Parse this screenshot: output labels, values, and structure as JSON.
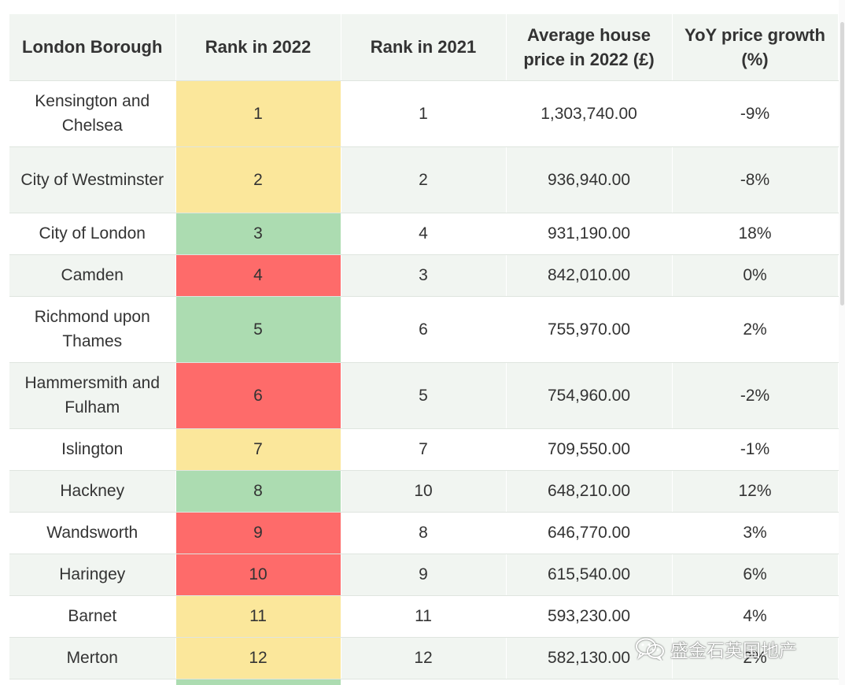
{
  "table": {
    "headers": [
      "London Borough",
      "Rank in 2022",
      "Rank in 2021",
      "Average house price in 2022 (£)",
      "YoY price growth (%)"
    ],
    "rows": [
      {
        "borough": "Kensington and Chelsea",
        "rank_2022": "1",
        "rank_2021": "1",
        "avg_price": "1,303,740.00",
        "yoy": "-9%",
        "rank_color": "#fbe79b"
      },
      {
        "borough": "City of Westminster",
        "rank_2022": "2",
        "rank_2021": "2",
        "avg_price": "936,940.00",
        "yoy": "-8%",
        "rank_color": "#fbe79b"
      },
      {
        "borough": "City of London",
        "rank_2022": "3",
        "rank_2021": "4",
        "avg_price": "931,190.00",
        "yoy": "18%",
        "rank_color": "#acdcb1"
      },
      {
        "borough": "Camden",
        "rank_2022": "4",
        "rank_2021": "3",
        "avg_price": "842,010.00",
        "yoy": "0%",
        "rank_color": "#fe6b6a"
      },
      {
        "borough": "Richmond upon Thames",
        "rank_2022": "5",
        "rank_2021": "6",
        "avg_price": "755,970.00",
        "yoy": "2%",
        "rank_color": "#acdcb1"
      },
      {
        "borough": "Hammersmith and Fulham",
        "rank_2022": "6",
        "rank_2021": "5",
        "avg_price": "754,960.00",
        "yoy": "-2%",
        "rank_color": "#fe6b6a"
      },
      {
        "borough": "Islington",
        "rank_2022": "7",
        "rank_2021": "7",
        "avg_price": "709,550.00",
        "yoy": "-1%",
        "rank_color": "#fbe79b"
      },
      {
        "borough": "Hackney",
        "rank_2022": "8",
        "rank_2021": "10",
        "avg_price": "648,210.00",
        "yoy": "12%",
        "rank_color": "#acdcb1"
      },
      {
        "borough": "Wandsworth",
        "rank_2022": "9",
        "rank_2021": "8",
        "avg_price": "646,770.00",
        "yoy": "3%",
        "rank_color": "#fe6b6a"
      },
      {
        "borough": "Haringey",
        "rank_2022": "10",
        "rank_2021": "9",
        "avg_price": "615,540.00",
        "yoy": "6%",
        "rank_color": "#fe6b6a"
      },
      {
        "borough": "Barnet",
        "rank_2022": "11",
        "rank_2021": "11",
        "avg_price": "593,230.00",
        "yoy": "4%",
        "rank_color": "#fbe79b"
      },
      {
        "borough": "Merton",
        "rank_2022": "12",
        "rank_2021": "12",
        "avg_price": "582,130.00",
        "yoy": "2%",
        "rank_color": "#fbe79b"
      }
    ],
    "partial_row_rank_color": "#acdcb1"
  },
  "watermark": {
    "icon": "wechat-icon",
    "text": "盛金石英国地产"
  },
  "colors": {
    "header_bg": "#f1f5f1",
    "alt_row_bg": "#f1f5f1",
    "rank_up": "#acdcb1",
    "rank_same": "#fbe79b",
    "rank_down": "#fe6b6a"
  }
}
